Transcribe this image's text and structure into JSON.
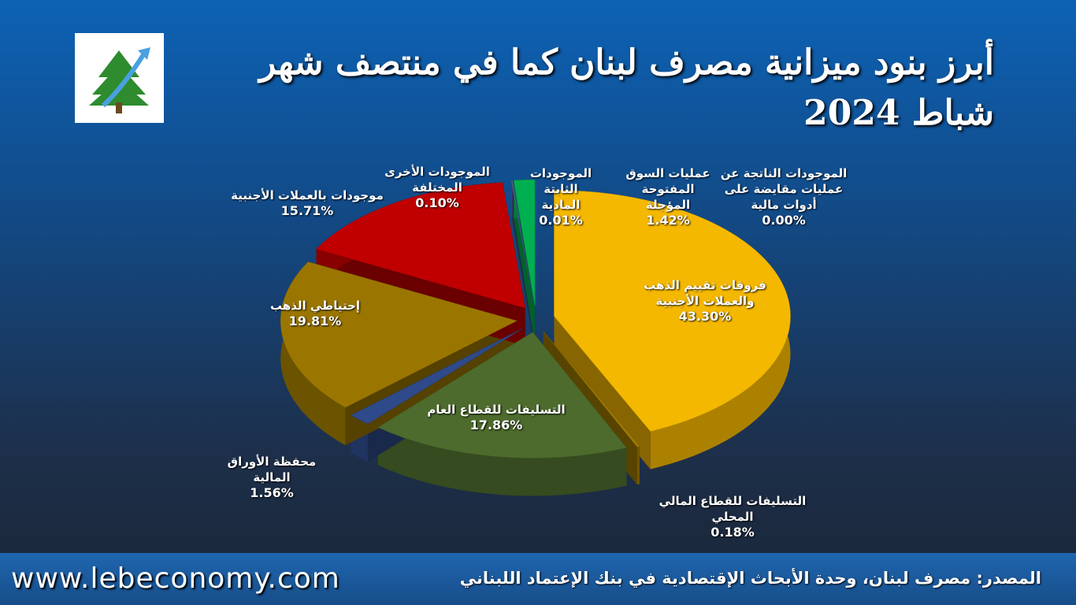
{
  "chart_data": {
    "type": "pie",
    "title": "أبرز بنود ميزانية مصرف لبنان كما في منتصف شهر شباط 2024",
    "categories": [
      "الموجودات الناتجة عن عمليات مقايضة على أدوات مالية",
      "فروقات تقييم الذهب والعملات الأجنبية",
      "التسليفات للقطاع المالي المحلي",
      "التسليفات للقطاع العام",
      "محفظة الأوراق المالية",
      "إحتياطي الذهب",
      "موجودات بالعملات الأجنبية",
      "الموجودات الأخرى المختلفة",
      "الموجودات الثابتة المادية",
      "عمليات السوق المفتوحة المؤجلة"
    ],
    "values": [
      0.0,
      43.3,
      0.18,
      17.86,
      1.56,
      19.81,
      15.71,
      0.1,
      0.01,
      1.42
    ],
    "value_labels": [
      "0.00%",
      "43.30%",
      "0.18%",
      "17.86%",
      "1.56%",
      "19.81%",
      "15.71%",
      "0.10%",
      "0.01%",
      "1.42%"
    ],
    "colors": [
      "#3a6ec0",
      "#f5b800",
      "#a07c00",
      "#4d6b2c",
      "#2e4a8a",
      "#9a7600",
      "#c00000",
      "#4a6090",
      "#2e4a8a",
      "#00b050"
    ],
    "source": "المصدر: مصرف لبنان، وحدة الأبحاث الإقتصادية في بنك الإعتماد اللبناني",
    "website": "www.lebeconomy.com"
  }
}
